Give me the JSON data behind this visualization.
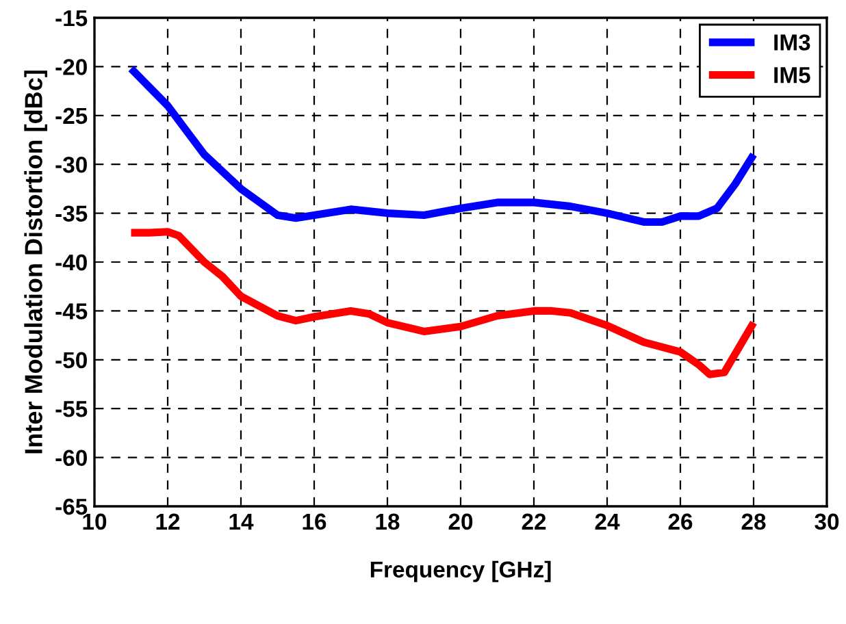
{
  "chart_data": {
    "type": "line",
    "xlabel": "Frequency [GHz]",
    "ylabel": "Inter Modulation Distortion [dBc]",
    "xlim": [
      10,
      30
    ],
    "xticks": [
      10,
      12,
      14,
      16,
      18,
      20,
      22,
      24,
      26,
      28,
      30
    ],
    "ylim": [
      -65,
      -15
    ],
    "yticks": [
      -65,
      -60,
      -55,
      -50,
      -45,
      -40,
      -35,
      -30,
      -25,
      -20,
      -15
    ],
    "grid": true,
    "legend": "top right",
    "marker": "none",
    "line_style": "solid",
    "series": [
      {
        "name": "IM3",
        "color": "#0000ff",
        "x": [
          11,
          12,
          12.5,
          13,
          14,
          15,
          15.5,
          16,
          17,
          18,
          19,
          20,
          21,
          22,
          23,
          24,
          25,
          25.5,
          26,
          26.5,
          27,
          27.5,
          28
        ],
        "values": [
          -20.2,
          -24,
          -26.5,
          -29,
          -32.5,
          -35.2,
          -35.5,
          -35.2,
          -34.6,
          -35,
          -35.2,
          -34.5,
          -33.9,
          -33.9,
          -34.3,
          -35,
          -35.9,
          -35.9,
          -35.3,
          -35.3,
          -34.5,
          -32,
          -29
        ]
      },
      {
        "name": "IM5",
        "color": "#ff0000",
        "x": [
          11,
          11.5,
          12,
          12.3,
          13,
          13.5,
          14,
          15,
          15.5,
          16,
          17,
          17.5,
          18,
          19,
          20,
          21,
          22,
          22.5,
          23,
          24,
          25,
          26,
          26.5,
          26.8,
          27.2,
          28
        ],
        "values": [
          -37,
          -37,
          -36.9,
          -37.3,
          -40,
          -41.5,
          -43.5,
          -45.5,
          -46,
          -45.6,
          -45,
          -45.3,
          -46.2,
          -47.1,
          -46.6,
          -45.5,
          -45,
          -45,
          -45.2,
          -46.5,
          -48.2,
          -49.2,
          -50.5,
          -51.5,
          -51.3,
          -46.2
        ]
      }
    ]
  }
}
